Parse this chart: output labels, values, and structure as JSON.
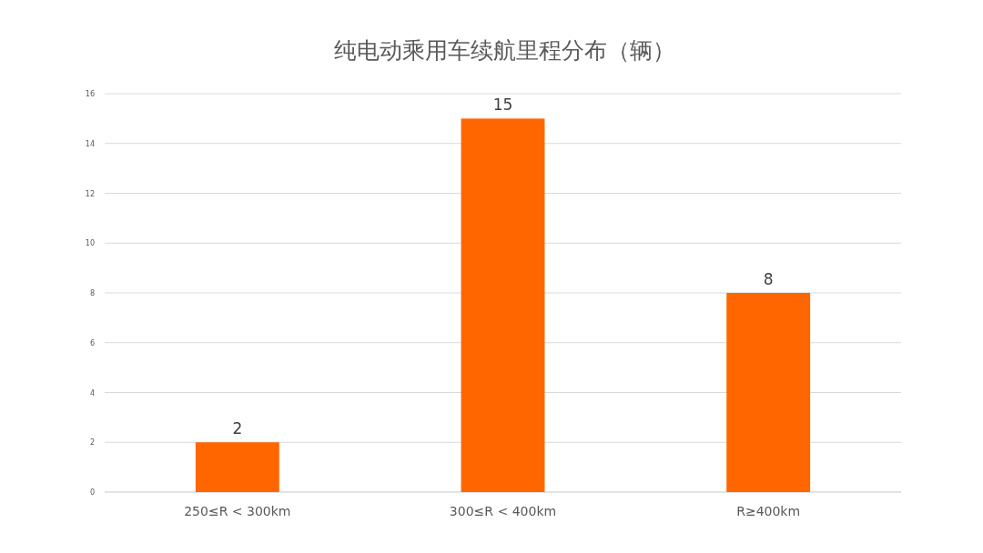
{
  "chart_data": {
    "type": "bar",
    "title": "纯电动乘用车续航里程分布（辆）",
    "categories": [
      "250≤R < 300km",
      "300≤R < 400km",
      "R≥400km"
    ],
    "values": [
      2,
      15,
      8
    ],
    "color": "#ff6600",
    "ylim": [
      0,
      16
    ],
    "yticks": [
      0,
      2,
      4,
      6,
      8,
      10,
      12,
      14,
      16
    ],
    "grid": "y",
    "data_labels": true
  }
}
